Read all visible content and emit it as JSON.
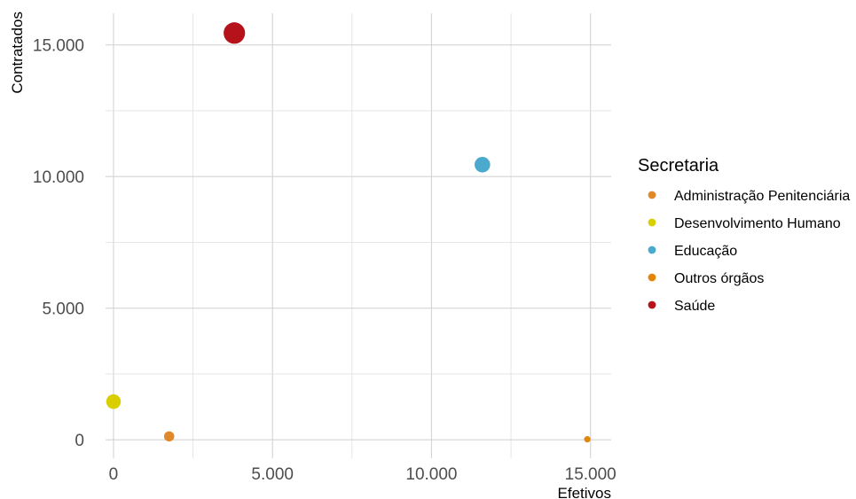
{
  "chart_data": {
    "type": "scatter",
    "title": "",
    "xlabel": "Efetivos",
    "ylabel": "Contratados",
    "xlim": [
      -250,
      15650
    ],
    "ylim": [
      -700,
      16200
    ],
    "x_ticks": [
      0,
      5000,
      10000,
      15000
    ],
    "x_tick_labels": [
      "0",
      "5.000",
      "10.000",
      "15.000"
    ],
    "y_ticks": [
      0,
      5000,
      10000,
      15000
    ],
    "y_tick_labels": [
      "0",
      "5.000",
      "10.000",
      "15.000"
    ],
    "grid": true,
    "legend_title": "Secretaria",
    "legend_position": "right",
    "series": [
      {
        "name": "Administração Penitenciária",
        "color": "#e0892b",
        "x": 1750,
        "y": 130,
        "size": 2.1
      },
      {
        "name": "Desenvolvimento Humano",
        "color": "#d9cf00",
        "x": 0,
        "y": 1450,
        "size": 3.0
      },
      {
        "name": "Educação",
        "color": "#4aa9cc",
        "x": 11600,
        "y": 10450,
        "size": 3.2
      },
      {
        "name": "Outros órgãos",
        "color": "#e2860b",
        "x": 14900,
        "y": 20,
        "size": 1.3
      },
      {
        "name": "Saúde",
        "color": "#b5121b",
        "x": 3800,
        "y": 15450,
        "size": 4.4
      }
    ]
  }
}
